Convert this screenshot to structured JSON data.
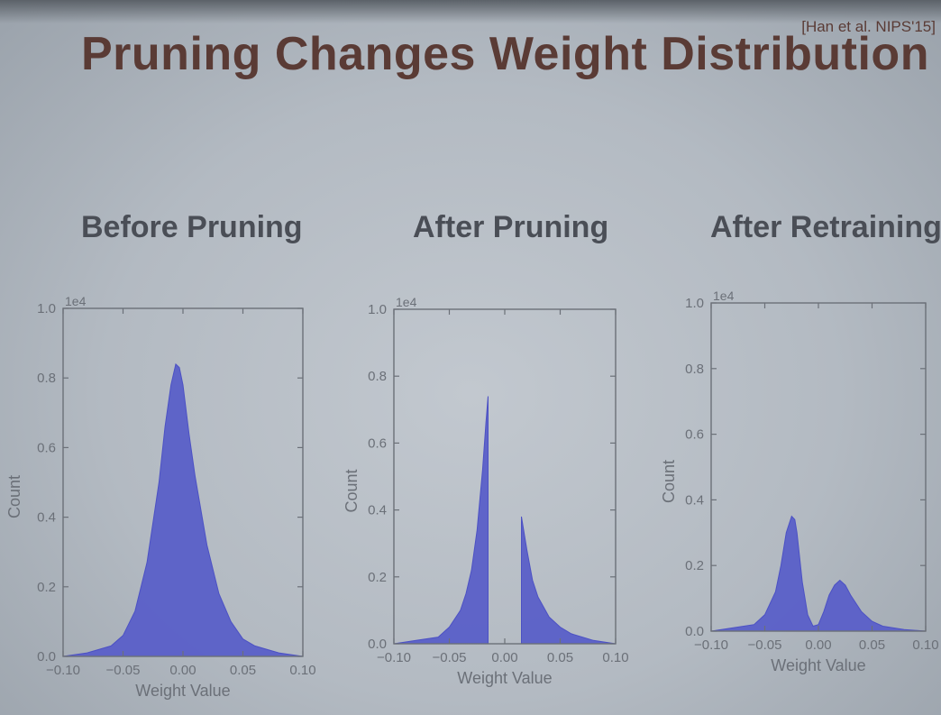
{
  "slide": {
    "title": "Pruning Changes Weight Distribution",
    "citation": "[Han et al. NIPS'15]"
  },
  "chart_data": [
    {
      "type": "area",
      "title": "Before Pruning",
      "xlabel": "Weight Value",
      "ylabel": "Count",
      "y_multiplier": "1e4",
      "xlim": [
        -0.1,
        0.1
      ],
      "ylim": [
        0,
        1.0
      ],
      "x_ticks": [
        "-0.10",
        "-0.05",
        "0.00",
        "0.05",
        "0.10"
      ],
      "y_ticks": [
        "0.0",
        "0.2",
        "0.4",
        "0.6",
        "0.8",
        "1.0"
      ],
      "series": [
        {
          "x": [
            -0.1,
            -0.08,
            -0.06,
            -0.05,
            -0.04,
            -0.03,
            -0.02,
            -0.015,
            -0.01,
            -0.006,
            -0.003,
            0.0,
            0.005,
            0.01,
            0.02,
            0.03,
            0.04,
            0.05,
            0.06,
            0.08,
            0.1
          ],
          "y": [
            0.0,
            0.01,
            0.03,
            0.06,
            0.13,
            0.27,
            0.5,
            0.66,
            0.78,
            0.84,
            0.83,
            0.78,
            0.64,
            0.52,
            0.32,
            0.18,
            0.1,
            0.05,
            0.03,
            0.01,
            0.0
          ]
        }
      ]
    },
    {
      "type": "area",
      "title": "After Pruning",
      "xlabel": "Weight Value",
      "ylabel": "Count",
      "y_multiplier": "1e4",
      "xlim": [
        -0.1,
        0.1
      ],
      "ylim": [
        0,
        1.0
      ],
      "x_ticks": [
        "-0.10",
        "-0.05",
        "0.00",
        "0.05",
        "0.10"
      ],
      "y_ticks": [
        "0.0",
        "0.2",
        "0.4",
        "0.6",
        "0.8",
        "1.0"
      ],
      "series": [
        {
          "x": [
            -0.1,
            -0.08,
            -0.06,
            -0.05,
            -0.04,
            -0.035,
            -0.03,
            -0.025,
            -0.02,
            -0.017,
            -0.015,
            -0.015
          ],
          "y": [
            0.0,
            0.01,
            0.02,
            0.05,
            0.1,
            0.15,
            0.22,
            0.34,
            0.52,
            0.66,
            0.74,
            0.0
          ]
        },
        {
          "x": [
            0.015,
            0.015,
            0.02,
            0.025,
            0.03,
            0.04,
            0.05,
            0.06,
            0.08,
            0.1
          ],
          "y": [
            0.0,
            0.38,
            0.28,
            0.19,
            0.14,
            0.08,
            0.05,
            0.03,
            0.01,
            0.0
          ]
        }
      ]
    },
    {
      "type": "area",
      "title": "After Retraining",
      "xlabel": "Weight Value",
      "ylabel": "Count",
      "y_multiplier": "1e4",
      "xlim": [
        -0.1,
        0.1
      ],
      "ylim": [
        0,
        1.0
      ],
      "x_ticks": [
        "-0.10",
        "-0.05",
        "0.00",
        "0.05",
        "0.10"
      ],
      "y_ticks": [
        "0.0",
        "0.2",
        "0.4",
        "0.6",
        "0.8",
        "1.0"
      ],
      "series": [
        {
          "x": [
            -0.1,
            -0.08,
            -0.06,
            -0.05,
            -0.04,
            -0.035,
            -0.03,
            -0.025,
            -0.022,
            -0.02,
            -0.015,
            -0.01,
            -0.005,
            0.0,
            0.005,
            0.01,
            0.015,
            0.02,
            0.025,
            0.03,
            0.04,
            0.05,
            0.06,
            0.08,
            0.1
          ],
          "y": [
            0.0,
            0.01,
            0.02,
            0.05,
            0.12,
            0.2,
            0.3,
            0.35,
            0.34,
            0.3,
            0.15,
            0.05,
            0.015,
            0.02,
            0.06,
            0.11,
            0.14,
            0.155,
            0.14,
            0.11,
            0.06,
            0.03,
            0.015,
            0.005,
            0.0
          ]
        }
      ]
    }
  ],
  "colors": {
    "fill": "#5a5fc8",
    "stroke": "#4c51c4",
    "title": "#5a3b35",
    "axes": "#6b7078"
  }
}
